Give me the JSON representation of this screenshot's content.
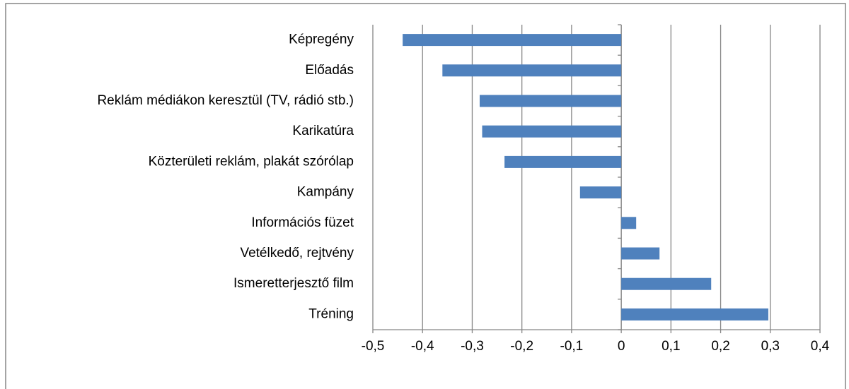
{
  "chart_data": {
    "type": "bar",
    "orientation": "horizontal",
    "categories": [
      "Képregény",
      "Előadás",
      "Reklám médiákon keresztül (TV, rádió stb.)",
      "Karikatúra",
      "Közterületi reklám, plakát szórólap",
      "Kampány",
      "Információs füzet",
      "Vetélkedő, rejtvény",
      "Ismeretterjesztő film",
      "Tréning"
    ],
    "values": [
      -0.44,
      -0.36,
      -0.285,
      -0.28,
      -0.235,
      -0.083,
      0.03,
      0.077,
      0.181,
      0.296
    ],
    "color": "#4f81bd",
    "xlim": [
      -0.5,
      0.4
    ],
    "xticks": [
      {
        "value": -0.5,
        "label": "-0,5"
      },
      {
        "value": -0.4,
        "label": "-0,4"
      },
      {
        "value": -0.3,
        "label": "-0,3"
      },
      {
        "value": -0.2,
        "label": "-0,2"
      },
      {
        "value": -0.1,
        "label": "-0,1"
      },
      0,
      {
        "value": 0.1,
        "label": "0,1"
      },
      {
        "value": 0.2,
        "label": "0,2"
      },
      {
        "value": 0.3,
        "label": "0,3"
      },
      {
        "value": 0.4,
        "label": "0,4"
      }
    ],
    "grid": true
  }
}
